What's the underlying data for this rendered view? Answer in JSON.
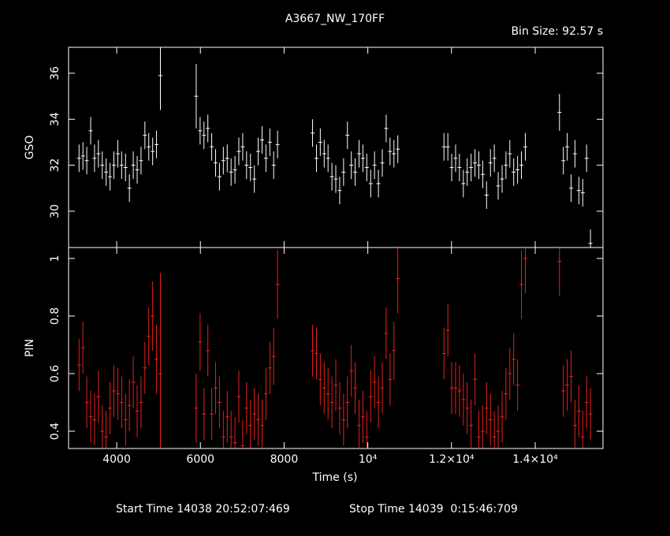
{
  "chart_data": {
    "type": "errorbar",
    "title": "A3667_NW_170FF",
    "subtitle": "Bin Size: 92.57 s",
    "xlabel": "Time (s)",
    "footer": [
      "Start Time 14038 20:52:07:469",
      "Stop Time 14039  0:15:46:709"
    ],
    "xlim": [
      2850,
      15620
    ],
    "xticks": [
      4000,
      6000,
      8000,
      {
        "value": 10000,
        "label": "10⁴"
      },
      {
        "value": 12000,
        "label": "1.2×10⁴"
      },
      {
        "value": 14000,
        "label": "1.4×10⁴"
      }
    ],
    "x": [
      3100,
      3193,
      3285,
      3378,
      3470,
      3563,
      3655,
      3748,
      3841,
      3933,
      4026,
      4118,
      4211,
      4303,
      4396,
      4489,
      4581,
      4674,
      4766,
      4859,
      4951,
      5044,
      5900,
      5993,
      6085,
      6178,
      6270,
      6363,
      6455,
      6548,
      6641,
      6733,
      6826,
      6918,
      7011,
      7103,
      7196,
      7289,
      7381,
      7474,
      7566,
      7659,
      7751,
      7844,
      8680,
      8773,
      8865,
      8958,
      9050,
      9143,
      9235,
      9328,
      9421,
      9513,
      9606,
      9698,
      9791,
      9883,
      9976,
      10069,
      10161,
      10254,
      10346,
      10439,
      10531,
      10624,
      10717,
      11820,
      11913,
      12005,
      12098,
      12190,
      12283,
      12375,
      12468,
      12561,
      12653,
      12746,
      12838,
      12931,
      13023,
      13116,
      13209,
      13301,
      13394,
      13486,
      13579,
      13671,
      13764,
      14580,
      14673,
      14765,
      14858,
      14950,
      15043,
      15136,
      15228,
      15321
    ],
    "panels": [
      {
        "ylabel": "GSO",
        "color": "#ffffff",
        "ylim": [
          28.42,
          37.13
        ],
        "yticks": [
          30,
          32,
          34,
          36
        ],
        "values": [
          32.3,
          32.4,
          32.2,
          33.5,
          32.3,
          32.5,
          32.0,
          31.7,
          31.5,
          32.0,
          32.5,
          32.0,
          31.9,
          31.0,
          32.0,
          31.8,
          32.2,
          33.3,
          32.8,
          32.6,
          32.9,
          35.9,
          35.0,
          33.5,
          33.3,
          33.6,
          32.8,
          32.1,
          31.5,
          32.2,
          32.3,
          31.7,
          31.8,
          32.6,
          32.8,
          32.0,
          31.9,
          31.4,
          32.6,
          33.1,
          32.3,
          33.0,
          32.0,
          32.9,
          33.4,
          32.3,
          33.0,
          32.5,
          32.3,
          31.5,
          31.4,
          30.9,
          31.7,
          33.3,
          32.0,
          31.7,
          32.5,
          32.3,
          31.9,
          31.2,
          32.0,
          31.2,
          32.1,
          33.6,
          32.6,
          32.5,
          32.7,
          32.8,
          32.8,
          31.9,
          32.3,
          31.9,
          31.2,
          31.7,
          31.9,
          32.1,
          32.0,
          31.6,
          30.7,
          32.1,
          32.3,
          31.1,
          31.4,
          32.0,
          32.5,
          31.7,
          31.8,
          32.0,
          32.8,
          34.3,
          32.2,
          32.8,
          31.0,
          32.5,
          30.9,
          30.8,
          32.3,
          28.6
        ],
        "errors": [
          0.6,
          0.6,
          0.6,
          0.6,
          0.6,
          0.6,
          0.6,
          0.6,
          0.6,
          0.6,
          0.6,
          0.6,
          0.6,
          0.6,
          0.6,
          0.6,
          0.6,
          0.6,
          0.6,
          0.6,
          0.6,
          1.5,
          1.4,
          0.6,
          0.6,
          0.6,
          0.6,
          0.6,
          0.6,
          0.6,
          0.6,
          0.6,
          0.6,
          0.6,
          0.6,
          0.6,
          0.6,
          0.6,
          0.6,
          0.6,
          0.6,
          0.6,
          0.6,
          0.6,
          0.6,
          0.6,
          0.6,
          0.6,
          0.6,
          0.6,
          0.6,
          0.6,
          0.6,
          0.6,
          0.6,
          0.6,
          0.6,
          0.6,
          0.6,
          0.6,
          0.6,
          0.6,
          0.6,
          0.6,
          0.6,
          0.6,
          0.6,
          0.6,
          0.6,
          0.6,
          0.6,
          0.6,
          0.6,
          0.6,
          0.6,
          0.6,
          0.6,
          0.6,
          0.6,
          0.6,
          0.6,
          0.6,
          0.6,
          0.6,
          0.6,
          0.6,
          0.6,
          0.6,
          0.6,
          0.8,
          0.6,
          0.6,
          0.6,
          0.6,
          0.6,
          0.6,
          0.6,
          0.6
        ]
      },
      {
        "ylabel": "PIN",
        "color": "#e8201a",
        "ylim": [
          0.34,
          1.038
        ],
        "yticks": [
          0.4,
          0.6,
          0.8,
          1
        ],
        "values": [
          0.63,
          0.69,
          0.5,
          0.45,
          0.44,
          0.52,
          0.4,
          0.38,
          0.48,
          0.54,
          0.53,
          0.5,
          0.44,
          0.49,
          0.57,
          0.47,
          0.5,
          0.62,
          0.73,
          0.8,
          0.65,
          0.6,
          0.48,
          0.71,
          0.46,
          0.68,
          0.46,
          0.55,
          0.5,
          0.38,
          0.45,
          0.38,
          0.36,
          0.52,
          0.35,
          0.48,
          0.42,
          0.46,
          0.44,
          0.42,
          0.53,
          0.62,
          0.66,
          0.91,
          0.68,
          0.67,
          0.58,
          0.55,
          0.53,
          0.5,
          0.56,
          0.48,
          0.44,
          0.5,
          0.61,
          0.55,
          0.42,
          0.45,
          0.38,
          0.52,
          0.57,
          0.5,
          0.55,
          0.74,
          0.58,
          0.68,
          0.93,
          0.67,
          0.75,
          0.55,
          0.55,
          0.54,
          0.51,
          0.48,
          0.42,
          0.58,
          0.38,
          0.4,
          0.48,
          0.44,
          0.38,
          0.4,
          0.45,
          0.53,
          0.6,
          0.65,
          0.56,
          0.91,
          1.0,
          0.99,
          0.54,
          0.56,
          0.59,
          0.42,
          0.47,
          0.38,
          0.5,
          0.46
        ],
        "errors": [
          0.09,
          0.09,
          0.09,
          0.09,
          0.09,
          0.09,
          0.09,
          0.09,
          0.09,
          0.09,
          0.09,
          0.09,
          0.09,
          0.09,
          0.09,
          0.09,
          0.09,
          0.09,
          0.1,
          0.12,
          0.12,
          0.35,
          0.12,
          0.1,
          0.09,
          0.09,
          0.09,
          0.09,
          0.09,
          0.09,
          0.09,
          0.09,
          0.09,
          0.09,
          0.09,
          0.09,
          0.09,
          0.09,
          0.09,
          0.09,
          0.09,
          0.09,
          0.1,
          0.12,
          0.09,
          0.09,
          0.09,
          0.09,
          0.09,
          0.09,
          0.09,
          0.09,
          0.09,
          0.09,
          0.09,
          0.09,
          0.09,
          0.09,
          0.09,
          0.09,
          0.09,
          0.09,
          0.09,
          0.09,
          0.09,
          0.1,
          0.12,
          0.09,
          0.09,
          0.09,
          0.09,
          0.09,
          0.09,
          0.09,
          0.09,
          0.09,
          0.09,
          0.09,
          0.09,
          0.09,
          0.09,
          0.09,
          0.09,
          0.09,
          0.09,
          0.09,
          0.09,
          0.12,
          0.12,
          0.12,
          0.09,
          0.09,
          0.09,
          0.09,
          0.09,
          0.09,
          0.09,
          0.09
        ]
      }
    ]
  }
}
